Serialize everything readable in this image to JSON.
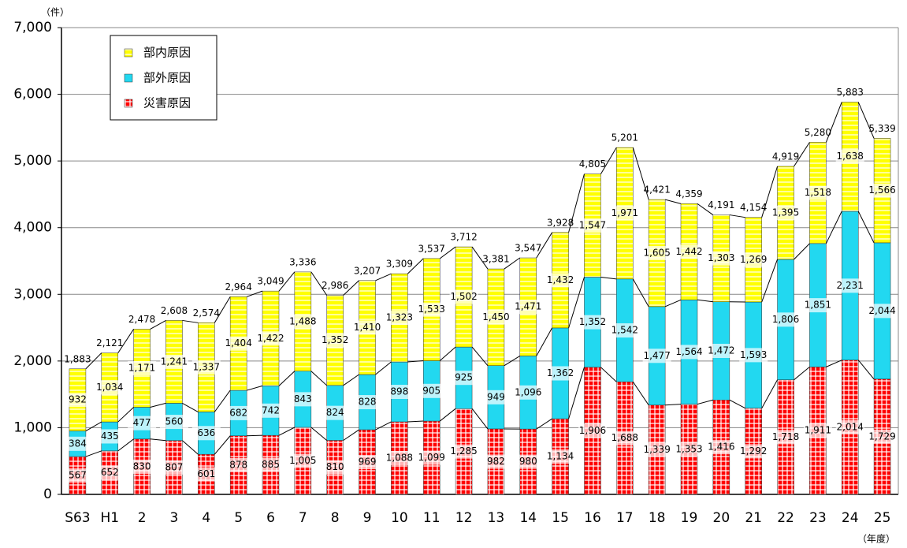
{
  "chart_data": {
    "type": "stacked_bar",
    "unit_label": "（件）",
    "x_label": "（年度）",
    "categories": [
      "S63",
      "H1",
      "2",
      "3",
      "4",
      "5",
      "6",
      "7",
      "8",
      "9",
      "10",
      "11",
      "12",
      "13",
      "14",
      "15",
      "16",
      "17",
      "18",
      "19",
      "20",
      "21",
      "22",
      "23",
      "24",
      "25"
    ],
    "series": [
      {
        "name": "災害原因",
        "color": "#ff0000",
        "values": [
          567,
          652,
          830,
          807,
          601,
          878,
          885,
          1005,
          810,
          969,
          1088,
          1099,
          1285,
          982,
          980,
          1134,
          1906,
          1688,
          1339,
          1353,
          1416,
          1292,
          1718,
          1911,
          2014,
          1729
        ],
        "value_labels": [
          "567",
          "652",
          "830",
          "807",
          "601",
          "878",
          "885",
          "1,005",
          "810",
          "969",
          "1,088",
          "1,099",
          "1,285",
          "982",
          "980",
          "1,134",
          "1,906",
          "1,688",
          "1,339",
          "1,353",
          "1,416",
          "1,292",
          "1,718",
          "1,911",
          "2,014",
          "1,729"
        ]
      },
      {
        "name": "部外原因",
        "color": "#22d8f0",
        "values": [
          384,
          435,
          477,
          560,
          636,
          682,
          742,
          843,
          824,
          828,
          898,
          905,
          925,
          949,
          1096,
          1362,
          1352,
          1542,
          1477,
          1564,
          1472,
          1593,
          1806,
          1851,
          2231,
          2044
        ],
        "value_labels": [
          "384",
          "435",
          "477",
          "560",
          "636",
          "682",
          "742",
          "843",
          "824",
          "828",
          "898",
          "905",
          "925",
          "949",
          "1,096",
          "1,362",
          "1,352",
          "1,542",
          "1,477",
          "1,564",
          "1,472",
          "1,593",
          "1,806",
          "1,851",
          "2,231",
          "2,044"
        ]
      },
      {
        "name": "部内原因",
        "color": "#ffff00",
        "values": [
          932,
          1034,
          1171,
          1241,
          1337,
          1404,
          1422,
          1488,
          1352,
          1410,
          1323,
          1533,
          1502,
          1450,
          1471,
          1432,
          1547,
          1971,
          1605,
          1442,
          1303,
          1269,
          1395,
          1518,
          1638,
          1566
        ],
        "value_labels": [
          "932",
          "1,034",
          "1,171",
          "1,241",
          "1,337",
          "1,404",
          "1,422",
          "1,488",
          "1,352",
          "1,410",
          "1,323",
          "1,533",
          "1,502",
          "1,450",
          "1,471",
          "1,432",
          "1,547",
          "1,971",
          "1,605",
          "1,442",
          "1,303",
          "1,269",
          "1,395",
          "1,518",
          "1,638",
          "1,566"
        ]
      }
    ],
    "totals": [
      1883,
      2121,
      2478,
      2608,
      2574,
      2964,
      3049,
      3336,
      2986,
      3207,
      3309,
      3537,
      3712,
      3381,
      3547,
      3928,
      4805,
      5201,
      4421,
      4359,
      4191,
      4154,
      4919,
      5280,
      5883,
      5339
    ],
    "total_labels": [
      "1,883",
      "2,121",
      "2,478",
      "2,608",
      "2,574",
      "2,964",
      "3,049",
      "3,336",
      "2,986",
      "3,207",
      "3,309",
      "3,537",
      "3,712",
      "3,381",
      "3,547",
      "3,928",
      "4,805",
      "5,201",
      "4,421",
      "4,359",
      "4,191",
      "4,154",
      "4,919",
      "5,280",
      "5,883",
      "5,339"
    ],
    "ylim": [
      0,
      7000
    ],
    "yticks": [
      0,
      {
        "value": 1000,
        "label": "1,000"
      },
      {
        "value": 2000,
        "label": "2,000"
      },
      {
        "value": 3000,
        "label": "3,000"
      },
      {
        "value": 4000,
        "label": "4,000"
      },
      {
        "value": 5000,
        "label": "5,000"
      },
      {
        "value": 6000,
        "label": "6,000"
      },
      {
        "value": 7000,
        "label": "7,000"
      }
    ],
    "grid": true,
    "legend": "upper left"
  }
}
